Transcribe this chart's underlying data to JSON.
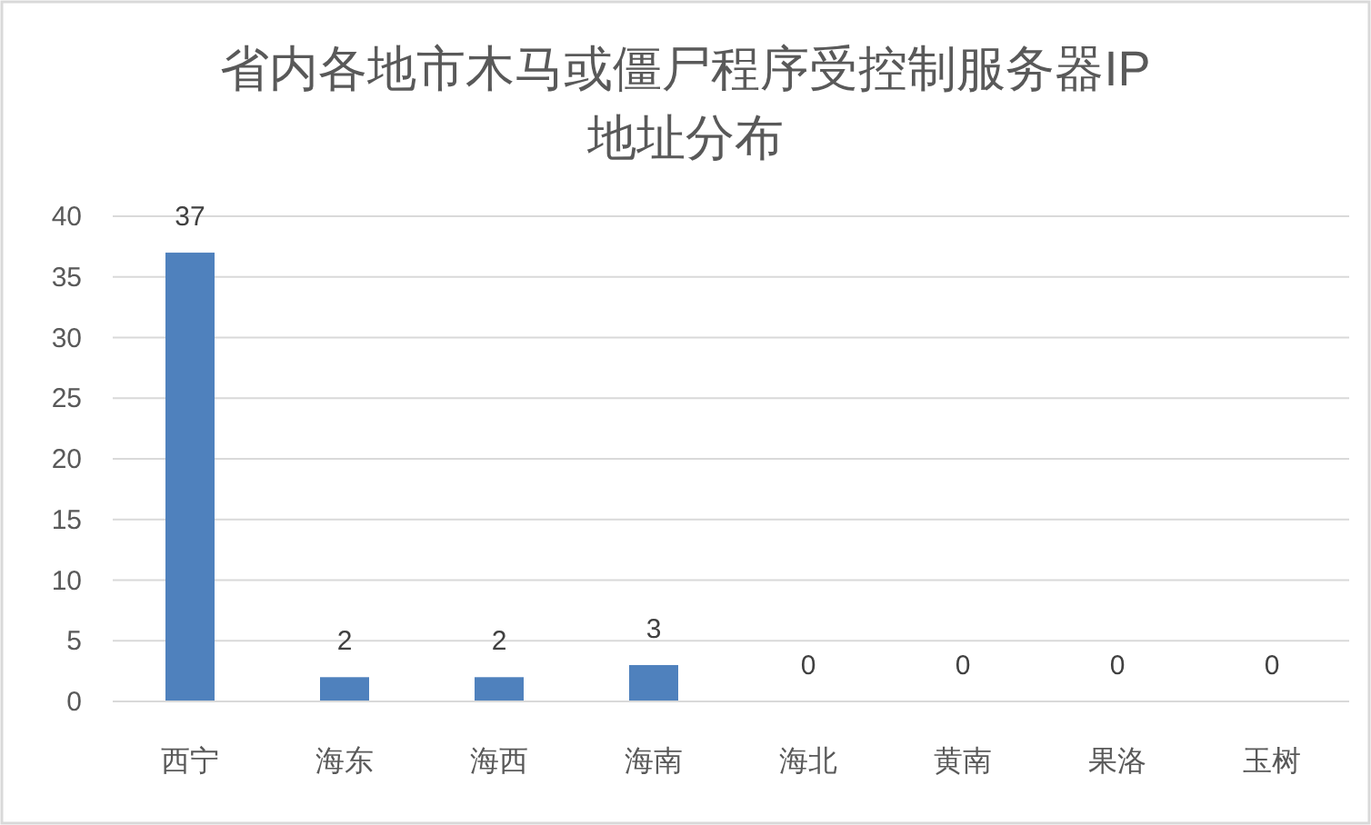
{
  "chart_data": {
    "type": "bar",
    "title": "省内各地市木马或僵尸程序受控制服务器IP地址分布",
    "categories": [
      "西宁",
      "海东",
      "海西",
      "海南",
      "海北",
      "黄南",
      "果洛",
      "玉树"
    ],
    "values": [
      37,
      2,
      2,
      3,
      0,
      0,
      0,
      0
    ],
    "color": "#4f81bd",
    "ylim": [
      0,
      40
    ],
    "yticks": [
      0,
      5,
      10,
      15,
      20,
      25,
      30,
      35,
      40
    ],
    "grid": "y",
    "data_labels": true
  }
}
